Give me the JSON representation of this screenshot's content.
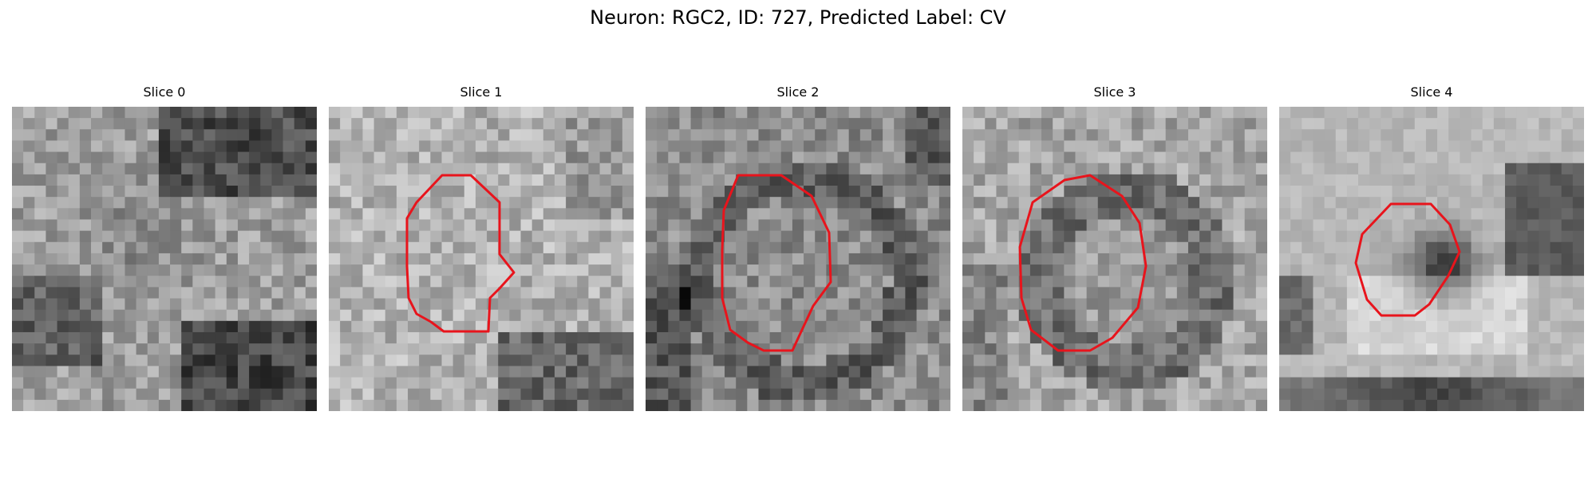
{
  "figure": {
    "title": "Neuron: RGC2, ID: 727, Predicted Label: CV",
    "contour_color": "#e8141c"
  },
  "panels": [
    {
      "title": "Slice 0",
      "has_contour": false
    },
    {
      "title": "Slice 1",
      "has_contour": true
    },
    {
      "title": "Slice 2",
      "has_contour": true
    },
    {
      "title": "Slice 3",
      "has_contour": true
    },
    {
      "title": "Slice 4",
      "has_contour": true
    }
  ]
}
